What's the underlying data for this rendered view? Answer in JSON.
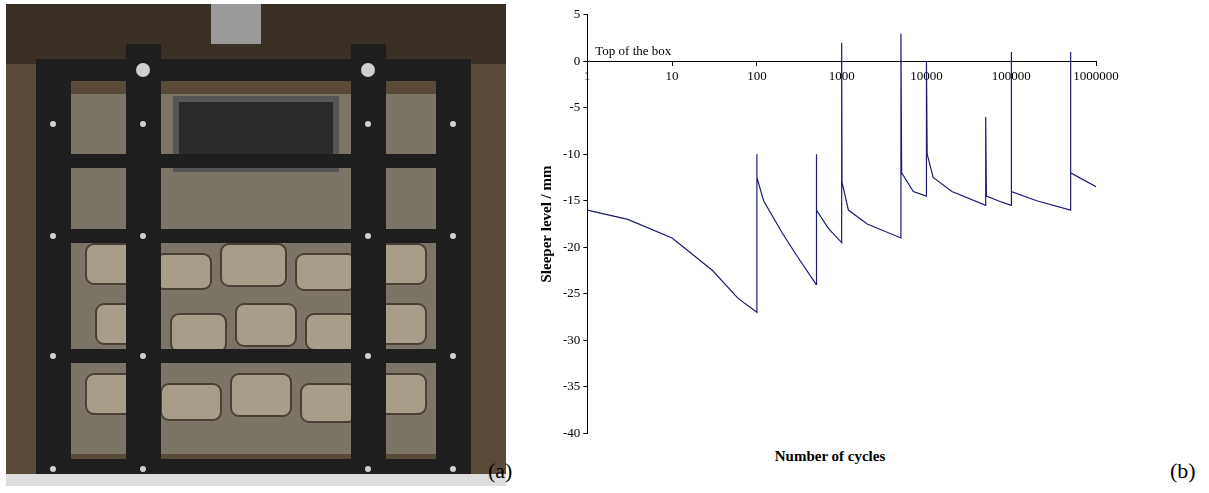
{
  "photo_label": "(a)",
  "chart_data": {
    "type": "line",
    "panel_label": "(b)",
    "annotation": "Top of the box",
    "xlabel": "Number of cycles",
    "ylabel": "Sleeper level / mm",
    "log": "x",
    "grid": false,
    "color": "#1c1c72",
    "xlim": [
      1,
      1000000
    ],
    "xticks": [
      1,
      10,
      100,
      1000,
      10000,
      100000,
      1000000
    ],
    "ylim": [
      -40,
      5
    ],
    "yticks": [
      -40,
      -35,
      -30,
      -25,
      -20,
      -15,
      -10,
      -5,
      0,
      5
    ],
    "x": [
      1,
      3,
      10,
      30,
      60,
      100,
      100,
      100,
      120,
      200,
      300,
      500,
      500,
      510,
      700,
      1000,
      1000,
      1010,
      1200,
      2000,
      5000,
      5000,
      5100,
      7000,
      10000,
      10000,
      10200,
      12000,
      20000,
      50000,
      50000,
      51000,
      70000,
      100000,
      100000,
      101000,
      200000,
      500000,
      500000,
      505000,
      1000000
    ],
    "values": [
      -16,
      -17,
      -19,
      -22.5,
      -25.5,
      -27,
      -10,
      -12.5,
      -15,
      -18.5,
      -21,
      -24,
      -10,
      -16,
      -18,
      -19.5,
      2,
      -13,
      -16,
      -17.5,
      -19,
      3,
      -12,
      -14,
      -14.5,
      0,
      -10,
      -12.5,
      -14,
      -15.5,
      -6,
      -14.5,
      -15,
      -15.5,
      1,
      -14,
      -15,
      -16,
      1,
      -12,
      -13.5
    ]
  }
}
